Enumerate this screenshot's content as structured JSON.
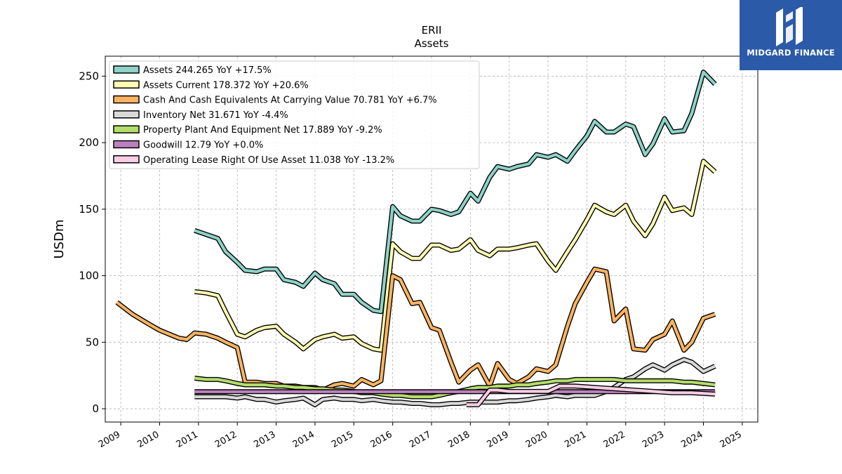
{
  "header": {
    "ticker": "ERII",
    "subtitle": "Assets"
  },
  "logo": {
    "text": "MIDGARD FINANCE",
    "background": "#2b5aa8"
  },
  "chart_data": {
    "type": "line",
    "title": "ERII",
    "subtitle": "Assets",
    "xlabel": "",
    "ylabel": "USDm",
    "xlim": [
      2008.6,
      2025.4
    ],
    "ylim": [
      -10,
      265
    ],
    "x_ticks": [
      "2009",
      "2010",
      "2011",
      "2012",
      "2013",
      "2014",
      "2015",
      "2016",
      "2017",
      "2018",
      "2019",
      "2020",
      "2021",
      "2022",
      "2023",
      "2024",
      "2025"
    ],
    "y_ticks": [
      0,
      50,
      100,
      150,
      200,
      250
    ],
    "grid": true,
    "legend_position": "top-left",
    "series": [
      {
        "name": "Assets",
        "legend": "Assets  244.265 YoY +17.5%",
        "color": "#8dd3c7",
        "points": [
          [
            2010.9,
            134
          ],
          [
            2011.2,
            131
          ],
          [
            2011.5,
            128
          ],
          [
            2011.7,
            118
          ],
          [
            2012.0,
            110
          ],
          [
            2012.2,
            104
          ],
          [
            2012.5,
            103
          ],
          [
            2012.7,
            105
          ],
          [
            2013.0,
            105
          ],
          [
            2013.2,
            97
          ],
          [
            2013.5,
            95
          ],
          [
            2013.7,
            92
          ],
          [
            2014.0,
            102
          ],
          [
            2014.2,
            97
          ],
          [
            2014.5,
            94
          ],
          [
            2014.7,
            86
          ],
          [
            2015.0,
            86
          ],
          [
            2015.2,
            80
          ],
          [
            2015.5,
            74
          ],
          [
            2015.7,
            73
          ],
          [
            2016.0,
            152
          ],
          [
            2016.2,
            145
          ],
          [
            2016.5,
            141
          ],
          [
            2016.7,
            141
          ],
          [
            2017.0,
            150
          ],
          [
            2017.2,
            149
          ],
          [
            2017.5,
            146
          ],
          [
            2017.7,
            148
          ],
          [
            2018.0,
            162
          ],
          [
            2018.2,
            156
          ],
          [
            2018.5,
            174
          ],
          [
            2018.7,
            182
          ],
          [
            2019.0,
            180
          ],
          [
            2019.2,
            182
          ],
          [
            2019.5,
            184
          ],
          [
            2019.7,
            191
          ],
          [
            2020.0,
            189
          ],
          [
            2020.2,
            191
          ],
          [
            2020.5,
            186
          ],
          [
            2020.7,
            194
          ],
          [
            2021.0,
            205
          ],
          [
            2021.2,
            216
          ],
          [
            2021.5,
            208
          ],
          [
            2021.7,
            208
          ],
          [
            2022.0,
            214
          ],
          [
            2022.2,
            212
          ],
          [
            2022.5,
            191
          ],
          [
            2022.7,
            199
          ],
          [
            2023.0,
            218
          ],
          [
            2023.2,
            208
          ],
          [
            2023.5,
            209
          ],
          [
            2023.7,
            222
          ],
          [
            2024.0,
            253
          ],
          [
            2024.3,
            244
          ]
        ]
      },
      {
        "name": "Assets Current",
        "legend": "Assets Current  178.372 YoY +20.6%",
        "color": "#ffffb3",
        "points": [
          [
            2010.9,
            88
          ],
          [
            2011.2,
            87
          ],
          [
            2011.5,
            85
          ],
          [
            2011.7,
            73
          ],
          [
            2012.0,
            56
          ],
          [
            2012.2,
            54
          ],
          [
            2012.5,
            59
          ],
          [
            2012.7,
            61
          ],
          [
            2013.0,
            62
          ],
          [
            2013.2,
            56
          ],
          [
            2013.5,
            50
          ],
          [
            2013.7,
            45
          ],
          [
            2014.0,
            52
          ],
          [
            2014.2,
            54
          ],
          [
            2014.5,
            56
          ],
          [
            2014.7,
            53
          ],
          [
            2015.0,
            54
          ],
          [
            2015.2,
            49
          ],
          [
            2015.5,
            45
          ],
          [
            2015.7,
            44
          ],
          [
            2016.0,
            124
          ],
          [
            2016.2,
            118
          ],
          [
            2016.5,
            113
          ],
          [
            2016.7,
            113
          ],
          [
            2017.0,
            123
          ],
          [
            2017.2,
            123
          ],
          [
            2017.5,
            119
          ],
          [
            2017.7,
            120
          ],
          [
            2018.0,
            127
          ],
          [
            2018.2,
            119
          ],
          [
            2018.5,
            115
          ],
          [
            2018.7,
            120
          ],
          [
            2019.0,
            120
          ],
          [
            2019.2,
            121
          ],
          [
            2019.5,
            123
          ],
          [
            2019.7,
            124
          ],
          [
            2020.0,
            111
          ],
          [
            2020.2,
            104
          ],
          [
            2020.5,
            118
          ],
          [
            2020.7,
            127
          ],
          [
            2021.0,
            142
          ],
          [
            2021.2,
            153
          ],
          [
            2021.5,
            148
          ],
          [
            2021.7,
            146
          ],
          [
            2022.0,
            153
          ],
          [
            2022.2,
            141
          ],
          [
            2022.5,
            130
          ],
          [
            2022.7,
            139
          ],
          [
            2023.0,
            159
          ],
          [
            2023.2,
            149
          ],
          [
            2023.5,
            151
          ],
          [
            2023.7,
            146
          ],
          [
            2024.0,
            186
          ],
          [
            2024.3,
            178
          ]
        ]
      },
      {
        "name": "Cash And Cash Equivalents At Carrying Value",
        "legend": "Cash And Cash Equivalents At Carrying Value  70.781 YoY +6.7%",
        "color": "#fdb462",
        "points": [
          [
            2008.9,
            80
          ],
          [
            2009.3,
            71
          ],
          [
            2009.7,
            64
          ],
          [
            2010.0,
            59
          ],
          [
            2010.5,
            53
          ],
          [
            2010.7,
            52
          ],
          [
            2010.9,
            57
          ],
          [
            2011.2,
            56
          ],
          [
            2011.5,
            53
          ],
          [
            2011.7,
            50
          ],
          [
            2012.0,
            46
          ],
          [
            2012.2,
            20
          ],
          [
            2012.5,
            20
          ],
          [
            2012.7,
            19
          ],
          [
            2013.0,
            19
          ],
          [
            2013.2,
            17
          ],
          [
            2013.5,
            17
          ],
          [
            2013.7,
            16
          ],
          [
            2014.0,
            16
          ],
          [
            2014.2,
            14
          ],
          [
            2014.5,
            18
          ],
          [
            2014.7,
            19
          ],
          [
            2015.0,
            17
          ],
          [
            2015.2,
            22
          ],
          [
            2015.5,
            18
          ],
          [
            2015.7,
            21
          ],
          [
            2016.0,
            100
          ],
          [
            2016.2,
            97
          ],
          [
            2016.5,
            79
          ],
          [
            2016.7,
            80
          ],
          [
            2017.0,
            61
          ],
          [
            2017.2,
            59
          ],
          [
            2017.5,
            35
          ],
          [
            2017.7,
            20
          ],
          [
            2018.0,
            29
          ],
          [
            2018.2,
            33
          ],
          [
            2018.5,
            17
          ],
          [
            2018.7,
            34
          ],
          [
            2019.0,
            22
          ],
          [
            2019.2,
            19
          ],
          [
            2019.5,
            24
          ],
          [
            2019.7,
            30
          ],
          [
            2020.0,
            28
          ],
          [
            2020.2,
            33
          ],
          [
            2020.5,
            62
          ],
          [
            2020.7,
            79
          ],
          [
            2021.0,
            95
          ],
          [
            2021.2,
            105
          ],
          [
            2021.5,
            103
          ],
          [
            2021.7,
            66
          ],
          [
            2022.0,
            75
          ],
          [
            2022.2,
            45
          ],
          [
            2022.5,
            44
          ],
          [
            2022.7,
            52
          ],
          [
            2023.0,
            56
          ],
          [
            2023.2,
            66
          ],
          [
            2023.5,
            44
          ],
          [
            2023.7,
            50
          ],
          [
            2024.0,
            68
          ],
          [
            2024.3,
            71
          ]
        ]
      },
      {
        "name": "Inventory Net",
        "legend": "Inventory Net  31.671 YoY -4.4%",
        "color": "#d9d9d9",
        "points": [
          [
            2010.9,
            9
          ],
          [
            2011.2,
            9
          ],
          [
            2011.5,
            9
          ],
          [
            2011.7,
            9
          ],
          [
            2012.0,
            8
          ],
          [
            2012.2,
            9
          ],
          [
            2012.5,
            7
          ],
          [
            2012.7,
            7
          ],
          [
            2013.0,
            5
          ],
          [
            2013.2,
            6
          ],
          [
            2013.5,
            7
          ],
          [
            2013.7,
            8
          ],
          [
            2014.0,
            3
          ],
          [
            2014.2,
            7
          ],
          [
            2014.5,
            8
          ],
          [
            2014.7,
            7
          ],
          [
            2015.0,
            7
          ],
          [
            2015.2,
            6
          ],
          [
            2015.5,
            7
          ],
          [
            2015.7,
            6
          ],
          [
            2016.0,
            5
          ],
          [
            2016.2,
            5
          ],
          [
            2016.5,
            4
          ],
          [
            2016.7,
            4
          ],
          [
            2017.0,
            3
          ],
          [
            2017.2,
            3
          ],
          [
            2017.5,
            4
          ],
          [
            2017.7,
            4
          ],
          [
            2018.0,
            5
          ],
          [
            2018.2,
            5
          ],
          [
            2018.5,
            5
          ],
          [
            2018.7,
            5
          ],
          [
            2019.0,
            6
          ],
          [
            2019.2,
            6
          ],
          [
            2019.5,
            7
          ],
          [
            2019.7,
            8
          ],
          [
            2020.0,
            9
          ],
          [
            2020.2,
            10
          ],
          [
            2020.5,
            9
          ],
          [
            2020.7,
            10
          ],
          [
            2021.0,
            10
          ],
          [
            2021.2,
            10
          ],
          [
            2021.5,
            13
          ],
          [
            2021.7,
            16
          ],
          [
            2022.0,
            22
          ],
          [
            2022.2,
            24
          ],
          [
            2022.5,
            30
          ],
          [
            2022.7,
            33
          ],
          [
            2023.0,
            29
          ],
          [
            2023.2,
            33
          ],
          [
            2023.5,
            37
          ],
          [
            2023.7,
            35
          ],
          [
            2024.0,
            28
          ],
          [
            2024.3,
            32
          ]
        ]
      },
      {
        "name": "Property Plant And Equipment Net",
        "legend": "Property Plant And Equipment Net  17.889 YoY -9.2%",
        "color": "#b3de69",
        "points": [
          [
            2010.9,
            23
          ],
          [
            2011.2,
            22
          ],
          [
            2011.5,
            22
          ],
          [
            2011.7,
            21
          ],
          [
            2012.0,
            19
          ],
          [
            2012.2,
            18
          ],
          [
            2012.5,
            18
          ],
          [
            2012.7,
            18
          ],
          [
            2013.0,
            17
          ],
          [
            2013.2,
            17
          ],
          [
            2013.5,
            16
          ],
          [
            2013.7,
            16
          ],
          [
            2014.0,
            15
          ],
          [
            2014.2,
            15
          ],
          [
            2014.5,
            14
          ],
          [
            2014.7,
            14
          ],
          [
            2015.0,
            13
          ],
          [
            2015.2,
            12
          ],
          [
            2015.5,
            12
          ],
          [
            2015.7,
            11
          ],
          [
            2016.0,
            10
          ],
          [
            2016.2,
            10
          ],
          [
            2016.5,
            9
          ],
          [
            2016.7,
            9
          ],
          [
            2017.0,
            9
          ],
          [
            2017.2,
            10
          ],
          [
            2017.5,
            12
          ],
          [
            2017.7,
            13
          ],
          [
            2018.0,
            15
          ],
          [
            2018.2,
            16
          ],
          [
            2018.5,
            16
          ],
          [
            2018.7,
            17
          ],
          [
            2019.0,
            17
          ],
          [
            2019.2,
            18
          ],
          [
            2019.5,
            18
          ],
          [
            2019.7,
            19
          ],
          [
            2020.0,
            20
          ],
          [
            2020.2,
            21
          ],
          [
            2020.5,
            21
          ],
          [
            2020.7,
            22
          ],
          [
            2021.0,
            22
          ],
          [
            2021.2,
            22
          ],
          [
            2021.5,
            22
          ],
          [
            2021.7,
            22
          ],
          [
            2022.0,
            21
          ],
          [
            2022.2,
            21
          ],
          [
            2022.5,
            21
          ],
          [
            2022.7,
            21
          ],
          [
            2023.0,
            21
          ],
          [
            2023.2,
            21
          ],
          [
            2023.5,
            20
          ],
          [
            2023.7,
            20
          ],
          [
            2024.0,
            19
          ],
          [
            2024.3,
            18
          ]
        ]
      },
      {
        "name": "Goodwill",
        "legend": "Goodwill  12.79 YoY +0.0%",
        "color": "#bc80bd",
        "points": [
          [
            2010.9,
            12.8
          ],
          [
            2024.3,
            12.8
          ]
        ]
      },
      {
        "name": "Operating Lease Right Of Use Asset",
        "legend": "Operating Lease Right Of Use Asset  11.038 YoY -13.2%",
        "color": "#fccde5",
        "points": [
          [
            2017.9,
            3
          ],
          [
            2018.2,
            3
          ],
          [
            2018.5,
            14
          ],
          [
            2018.7,
            14
          ],
          [
            2019.0,
            13
          ],
          [
            2019.5,
            13
          ],
          [
            2020.0,
            13
          ],
          [
            2020.3,
            17
          ],
          [
            2020.7,
            17
          ],
          [
            2021.2,
            16
          ],
          [
            2021.7,
            15
          ],
          [
            2022.2,
            14
          ],
          [
            2022.7,
            13
          ],
          [
            2023.2,
            12
          ],
          [
            2023.7,
            12
          ],
          [
            2024.3,
            11
          ]
        ]
      }
    ]
  }
}
